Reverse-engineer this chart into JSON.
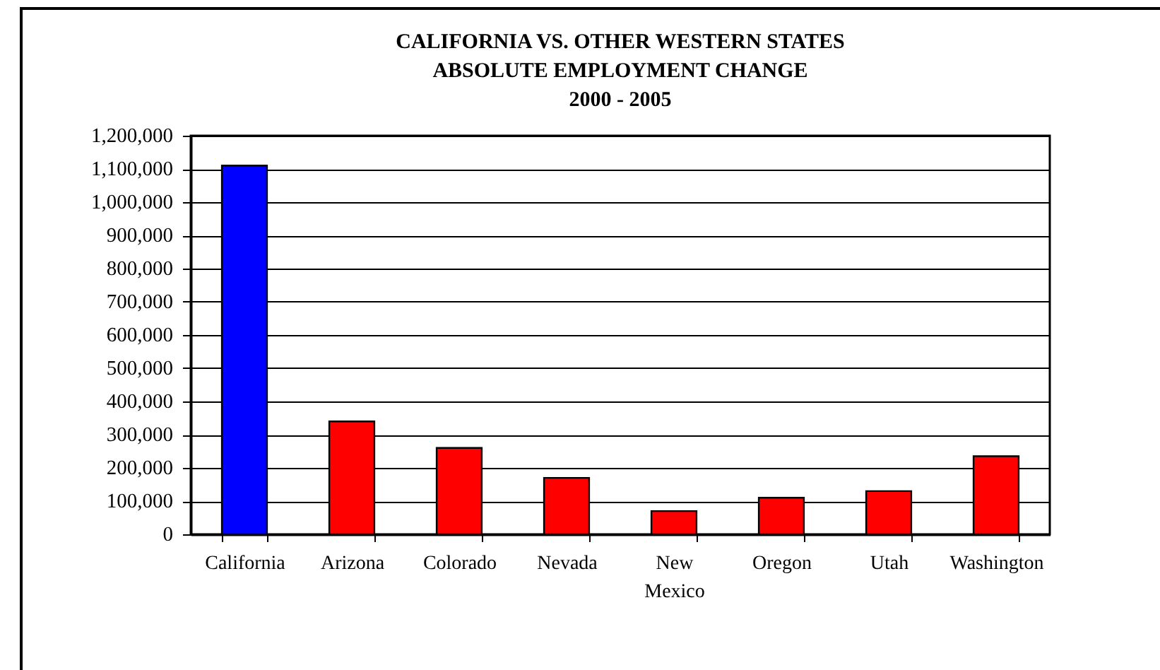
{
  "chart_data": {
    "type": "bar",
    "title": "CALIFORNIA VS. OTHER WESTERN STATES\nABSOLUTE EMPLOYMENT CHANGE\n2000 - 2005",
    "categories": [
      "California",
      "Arizona",
      "Colorado",
      "Nevada",
      "New Mexico",
      "Oregon",
      "Utah",
      "Washington"
    ],
    "values": [
      1110000,
      340000,
      260000,
      170000,
      70000,
      110000,
      130000,
      235000
    ],
    "colors": [
      "#0000ff",
      "#ff0000",
      "#ff0000",
      "#ff0000",
      "#ff0000",
      "#ff0000",
      "#ff0000",
      "#ff0000"
    ],
    "ylim": [
      0,
      1200000
    ],
    "yticks": [
      0,
      {
        "value": 100000,
        "label": "100,000"
      },
      {
        "value": 200000,
        "label": "200,000"
      },
      {
        "value": 300000,
        "label": "300,000"
      },
      {
        "value": 400000,
        "label": "400,000"
      },
      {
        "value": 500000,
        "label": "500,000"
      },
      {
        "value": 600000,
        "label": "600,000"
      },
      {
        "value": 700000,
        "label": "700,000"
      },
      {
        "value": 800000,
        "label": "800,000"
      },
      {
        "value": 900000,
        "label": "900,000"
      },
      {
        "value": 1000000,
        "label": "1,000,000"
      },
      {
        "value": 1100000,
        "label": "1,100,000"
      },
      {
        "value": 1200000,
        "label": "1,200,000"
      }
    ],
    "grid": "y"
  }
}
